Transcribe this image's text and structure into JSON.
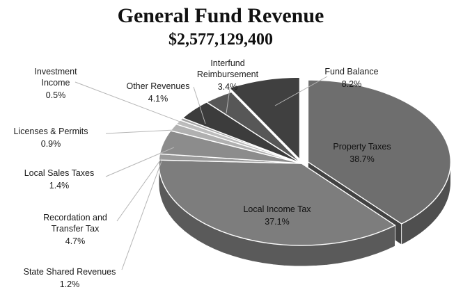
{
  "chart_data": {
    "type": "pie",
    "title": "General Fund Revenue",
    "subtitle": "$2,577,129,400",
    "slices": [
      {
        "label": "Property Taxes",
        "pct_text": "38.7%",
        "value": 38.7,
        "color": "#6e6e6e"
      },
      {
        "label": "Local Income Tax",
        "pct_text": "37.1%",
        "value": 37.1,
        "color": "#7d7d7d"
      },
      {
        "label": "State Shared Revenues",
        "pct_text": "1.2%",
        "value": 1.2,
        "color": "#9a9a9a"
      },
      {
        "label": "Recordation and Transfer Tax",
        "pct_text": "4.7%",
        "value": 4.7,
        "color": "#8c8c8c"
      },
      {
        "label": "Local Sales Taxes",
        "pct_text": "1.4%",
        "value": 1.4,
        "color": "#b0b0b0"
      },
      {
        "label": "Licenses & Permits",
        "pct_text": "0.9%",
        "value": 0.9,
        "color": "#bdbdbd"
      },
      {
        "label": "Investment Income",
        "pct_text": "0.5%",
        "value": 0.5,
        "color": "#a3a3a3"
      },
      {
        "label": "Other Revenues",
        "pct_text": "4.1%",
        "value": 4.1,
        "color": "#3c3c3c"
      },
      {
        "label": "Interfund Reimbursement",
        "pct_text": "3.4%",
        "value": 3.4,
        "color": "#575757"
      },
      {
        "label": "Fund Balance",
        "pct_text": "8.2%",
        "value": 8.2,
        "color": "#404040"
      }
    ],
    "exploded": [
      "Property Taxes",
      "Fund Balance"
    ]
  }
}
